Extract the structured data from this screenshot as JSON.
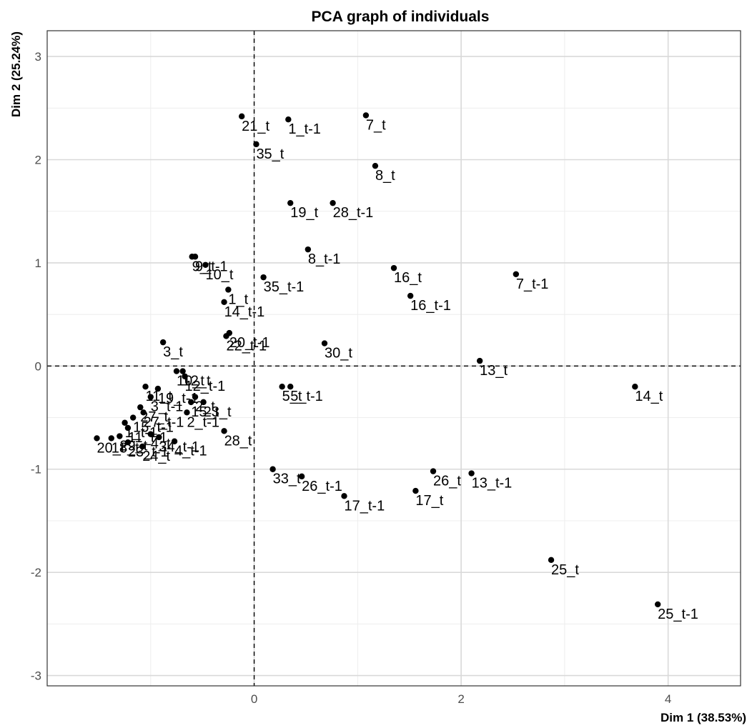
{
  "chart_data": {
    "type": "scatter",
    "title": "PCA graph of individuals",
    "xlabel": "Dim 1 (38.53%)",
    "ylabel": "Dim 2 (25.24%)",
    "xlim": [
      -2.0,
      4.7
    ],
    "ylim": [
      -3.1,
      3.25
    ],
    "x_ticks": [
      0,
      2,
      4
    ],
    "y_ticks": [
      -3,
      -2,
      -1,
      0,
      1,
      2,
      3
    ],
    "grid": true,
    "reference_lines": {
      "x": 0,
      "y": 0
    },
    "points": [
      {
        "label": "21_t",
        "x": -0.12,
        "y": 2.42
      },
      {
        "label": "1_t-1",
        "x": 0.33,
        "y": 2.39
      },
      {
        "label": "7_t",
        "x": 1.08,
        "y": 2.43
      },
      {
        "label": "35_t",
        "x": 0.02,
        "y": 2.15
      },
      {
        "label": "8_t",
        "x": 1.17,
        "y": 1.94
      },
      {
        "label": "19_t",
        "x": 0.35,
        "y": 1.58
      },
      {
        "label": "28_t-1",
        "x": 0.76,
        "y": 1.58
      },
      {
        "label": "8_t-1",
        "x": 0.52,
        "y": 1.13
      },
      {
        "label": "35_t-1",
        "x": 0.09,
        "y": 0.86
      },
      {
        "label": "16_t",
        "x": 1.35,
        "y": 0.95
      },
      {
        "label": "7_t-1",
        "x": 2.53,
        "y": 0.89
      },
      {
        "label": "16_t-1",
        "x": 1.51,
        "y": 0.68
      },
      {
        "label": "9_t",
        "x": -0.6,
        "y": 1.06
      },
      {
        "label": "9_t-1",
        "x": -0.57,
        "y": 1.06
      },
      {
        "label": "10_t",
        "x": -0.47,
        "y": 0.98
      },
      {
        "label": "1_t",
        "x": -0.25,
        "y": 0.74
      },
      {
        "label": "14_t-1",
        "x": -0.29,
        "y": 0.62
      },
      {
        "label": "20_t-1",
        "x": -0.24,
        "y": 0.32
      },
      {
        "label": "22_t-1",
        "x": -0.27,
        "y": 0.29
      },
      {
        "label": "3_t",
        "x": -0.88,
        "y": 0.23
      },
      {
        "label": "30_t",
        "x": 0.68,
        "y": 0.22
      },
      {
        "label": "13_t",
        "x": 2.18,
        "y": 0.05
      },
      {
        "label": "14_t",
        "x": 3.68,
        "y": -0.2
      },
      {
        "label": "5_t",
        "x": 0.27,
        "y": -0.2
      },
      {
        "label": "5_t-1",
        "x": 0.35,
        "y": -0.2
      },
      {
        "label": "10_t",
        "x": -0.75,
        "y": -0.05
      },
      {
        "label": "12_t",
        "x": -0.69,
        "y": -0.05
      },
      {
        "label": "12_t-1",
        "x": -0.67,
        "y": -0.1
      },
      {
        "label": "11_t",
        "x": -1.05,
        "y": -0.2
      },
      {
        "label": "19_t-1",
        "x": -0.93,
        "y": -0.22
      },
      {
        "label": "3_t-1",
        "x": -1.0,
        "y": -0.3
      },
      {
        "label": "15_t",
        "x": -0.61,
        "y": -0.35
      },
      {
        "label": "2_t",
        "x": -0.57,
        "y": -0.3
      },
      {
        "label": "23_t",
        "x": -0.49,
        "y": -0.35
      },
      {
        "label": "27_t",
        "x": -1.1,
        "y": -0.4
      },
      {
        "label": "27_t-1",
        "x": -1.07,
        "y": -0.45
      },
      {
        "label": "15_t-1",
        "x": -1.17,
        "y": -0.5
      },
      {
        "label": "1_t-1",
        "x": -1.25,
        "y": -0.55
      },
      {
        "label": "11_t-1",
        "x": -1.22,
        "y": -0.6
      },
      {
        "label": "2_t-1",
        "x": -0.65,
        "y": -0.45
      },
      {
        "label": "28_t",
        "x": -0.29,
        "y": -0.63
      },
      {
        "label": "20_t",
        "x": -1.52,
        "y": -0.7
      },
      {
        "label": "18_t",
        "x": -1.38,
        "y": -0.7
      },
      {
        "label": "29_t",
        "x": -1.3,
        "y": -0.68
      },
      {
        "label": "23_t-1",
        "x": -1.22,
        "y": -0.74
      },
      {
        "label": "24_t",
        "x": -1.08,
        "y": -0.78
      },
      {
        "label": "4_t",
        "x": -1.0,
        "y": -0.66
      },
      {
        "label": "34_t-1",
        "x": -0.92,
        "y": -0.69
      },
      {
        "label": "4_t-1",
        "x": -0.77,
        "y": -0.73
      },
      {
        "label": "33_t",
        "x": 0.18,
        "y": -1.0
      },
      {
        "label": "26_t-1",
        "x": 0.46,
        "y": -1.07
      },
      {
        "label": "17_t-1",
        "x": 0.87,
        "y": -1.26
      },
      {
        "label": "26_t",
        "x": 1.73,
        "y": -1.02
      },
      {
        "label": "13_t-1",
        "x": 2.1,
        "y": -1.04
      },
      {
        "label": "17_t",
        "x": 1.56,
        "y": -1.21
      },
      {
        "label": "25_t",
        "x": 2.87,
        "y": -1.88
      },
      {
        "label": "25_t-1",
        "x": 3.9,
        "y": -2.31
      }
    ]
  }
}
